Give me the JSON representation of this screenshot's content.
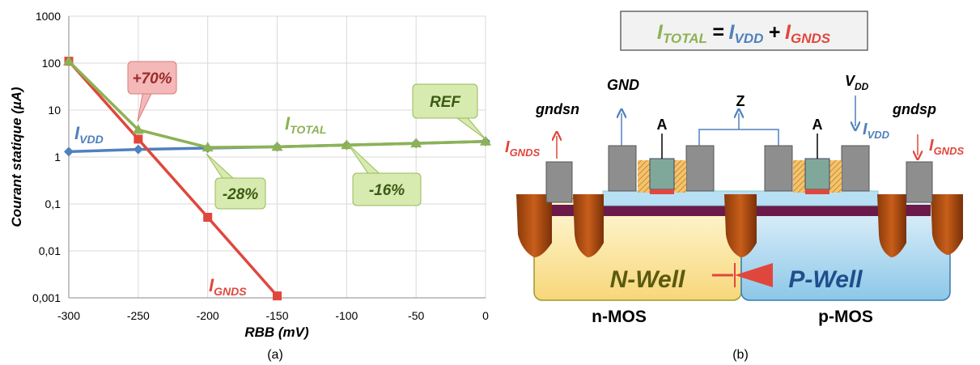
{
  "chart_data": {
    "type": "line",
    "log_y": true,
    "grid": true,
    "ylabel": "Courant statique (µA)",
    "xlabel": "RBB (mV)",
    "caption": "(a)",
    "x": [
      -300,
      -250,
      -200,
      -150,
      -100,
      -50,
      0
    ],
    "xlim": [
      -300,
      0
    ],
    "xticks": [
      -300,
      -250,
      -200,
      -150,
      -100,
      -50,
      0
    ],
    "ylim": [
      0.001,
      1000
    ],
    "yticks": [
      {
        "value": 0.001,
        "label": "0,001"
      },
      {
        "value": 0.01,
        "label": "0,01"
      },
      {
        "value": 0.1,
        "label": "0,1"
      },
      1,
      10,
      100,
      1000
    ],
    "series": [
      {
        "name": "I",
        "name_sub": "VDD",
        "color": "#4f81bd",
        "marker": "diamond",
        "values": [
          1.3,
          1.45,
          1.55,
          1.65,
          1.8,
          1.95,
          2.15
        ]
      },
      {
        "name": "I",
        "name_sub": "GNDS",
        "color": "#e0473c",
        "marker": "square",
        "values": [
          110,
          2.4,
          0.052,
          0.0011,
          null,
          null,
          null
        ]
      },
      {
        "name": "I",
        "name_sub": "TOTAL",
        "color": "#8db255",
        "marker": "triangle",
        "values": [
          110,
          3.8,
          1.6,
          1.65,
          1.8,
          1.95,
          2.15
        ]
      }
    ],
    "annotations": [
      {
        "text": "+70%",
        "color": "#f5b8b8",
        "border": "#d97b7b",
        "text_color": "#9b2c2c"
      },
      {
        "text": "-28%",
        "color": "#d7eab0",
        "border": "#9bbb59",
        "text_color": "#3b5a14"
      },
      {
        "text": "-16%",
        "color": "#d7eab0",
        "border": "#9bbb59",
        "text_color": "#3b5a14"
      },
      {
        "text": "REF",
        "color": "#d7eab0",
        "border": "#9bbb59",
        "text_color": "#3b5a14"
      }
    ]
  },
  "diagram": {
    "formula": [
      {
        "main": "I",
        "sub": "TOTAL"
      },
      "=",
      {
        "main": "I",
        "sub": "VDD"
      },
      "+",
      {
        "main": "I",
        "sub": "GNDS"
      }
    ],
    "gndsn": "gndsn",
    "gnd": "GND",
    "z": "Z",
    "a_left": "A",
    "a_right": "A",
    "vdd": {
      "main": "V",
      "sub": "DD"
    },
    "gndsp": "gndsp",
    "i_gnds_left": {
      "main": "I",
      "sub": "GNDS"
    },
    "i_vdd": {
      "main": "I",
      "sub": "VDD"
    },
    "i_gnds_right": {
      "main": "I",
      "sub": "GNDS"
    },
    "n_well": "N-Well",
    "p_well": "P-Well",
    "n_mos": "n-MOS",
    "p_mos": "p-MOS",
    "caption": "(b)"
  }
}
